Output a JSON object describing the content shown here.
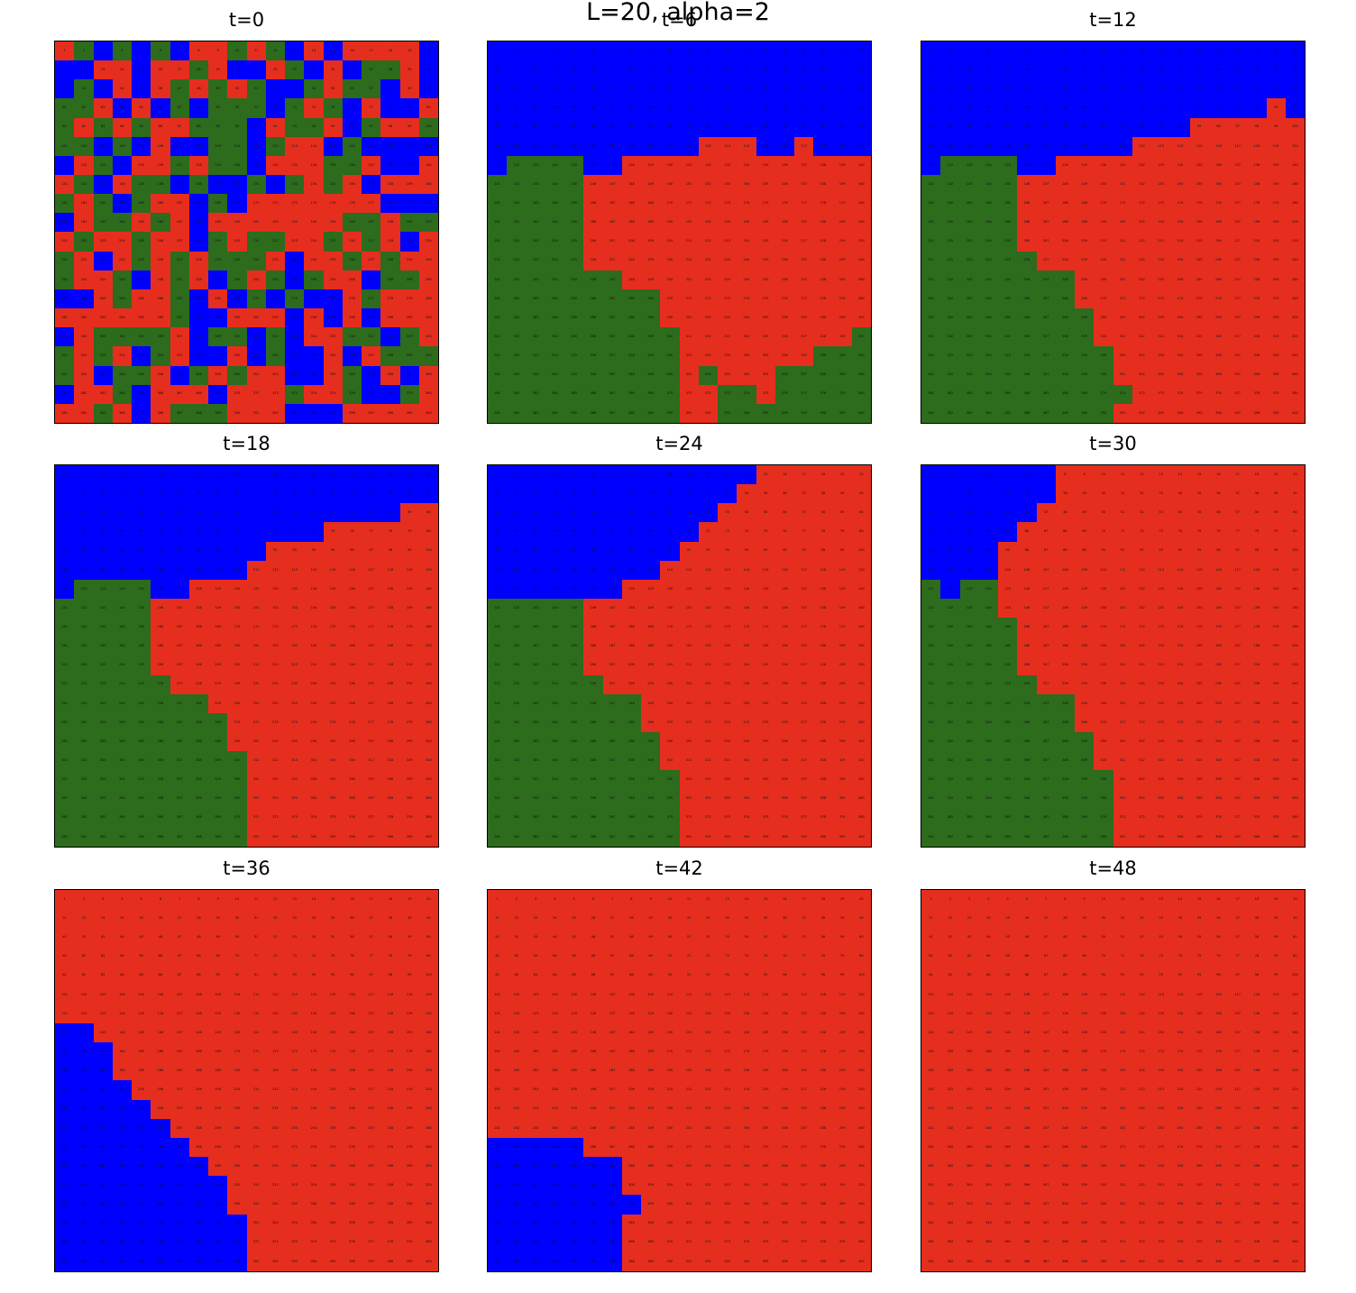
{
  "figure": {
    "title": "L=20, alpha=2"
  },
  "palette": {
    "0": "#ff0000",
    "1": "#2a7a1c",
    "2": "#0000ff",
    "red": "#e62e1e",
    "green": "#2d6b1d",
    "blue": "#0000ff"
  },
  "chart_data": {
    "type": "heatmap",
    "L": 20,
    "colors": [
      "R",
      "G",
      "B"
    ],
    "cell_labels": "1..400 row-major",
    "panels": [
      {
        "title": "t=0",
        "rows": [
          "RGBGBGBRRGRGBRBRRRRB",
          "BBRRBRRGRBBRGBRBGGRB",
          "BGBRBRGRGRGBBGRGGBRB",
          "GGRBRBGBGGGBGRGBRBBR",
          "GRGRGRRGGGBRGGRBGRRG",
          "GGBGBRBBGGBGRRBGBBBB",
          "BRGBRRGRGGBRRRGGRBBR",
          "RGBRGGBGBBGBGRGRBRRR",
          "GRGBGRRBGBRRRRRRRBBB",
          "BRGGRGRBRRRRRRRGGRGG",
          "RGRRGRRBGRGGRRGRGRBR",
          "GRBRGRGRGGGRBRRGRGRR",
          "GRRGBRGRBGRGBGRRBGGR",
          "BBRGRRGBRBGBGBBRGRRR",
          "RRRRRRGBBRRRBRBRBRRR",
          "BRGGGGRBGGBGBRRGGBGR",
          "GRGRBGRBBRBGBBRBRGGG",
          "GRBGGRBGRGRRBBRGBRBR",
          "BRRGBRRRBRRRGRRGBBGR",
          "RRGRBRGGGRRRBBBRRRRR"
        ]
      },
      {
        "title": "t=6",
        "rows": [
          "BBBBBBBBBBBBBBBBBBBB",
          "BBBBBBBBBBBBBBBBBBBB",
          "BBBBBBBBBBBBBBBBBBBB",
          "BBBBBBBBBBBBBBBBBBBB",
          "BBBBBBBBBBBBBBBBBBBB",
          "BBBBBBBBBBBRRRBBRBBB",
          "BGGGGBBRRRRRRRRRRRRR",
          "GGGGGRRRRRRRRRRRRRRR",
          "GGGGGRRRRRRRRRRRRRRR",
          "GGGGGRRRRRRRRRRRRRRR",
          "GGGGGRRRRRRRRRRRRRRR",
          "GGGGGRRRRRRRRRRRRRRR",
          "GGGGGGGRRRRRRRRRRRRR",
          "GGGGGGGGGRRRRRRRRRRR",
          "GGGGGGGGGRRRRRRRRRRR",
          "GGGGGGGGGGRRRRRRRRRG",
          "GGGGGGGGGGRRRRRRRGGG",
          "GGGGGGGGGGRGRRRGGGGG",
          "GGGGGGGGGGRRGGRGGGGG",
          "GGGGGGGGGGRRGGGGGGGG"
        ]
      },
      {
        "title": "t=12",
        "rows": [
          "BBBBBBBBBBBBBBBBBBBB",
          "BBBBBBBBBBBBBBBBBBBB",
          "BBBBBBBBBBBBBBBBBBBB",
          "BBBBBBBBBBBBBBBBBBRB",
          "BBBBBBBBBBBBBBRRRRRR",
          "BBBBBBBBBBBRRRRRRRRR",
          "BGGGGBBRRRRRRRRRRRRR",
          "GGGGGRRRRRRRRRRRRRRR",
          "GGGGGRRRRRRRRRRRRRRR",
          "GGGGGRRRRRRRRRRRRRRR",
          "GGGGGRRRRRRRRRRRRRRR",
          "GGGGGGRRRRRRRRRRRRRR",
          "GGGGGGGGRRRRRRRRRRRR",
          "GGGGGGGGRRRRRRRRRRRR",
          "GGGGGGGGGRRRRRRRRRRR",
          "GGGGGGGGGRRRRRRRRRRR",
          "GGGGGGGGGGRRRRRRRRRR",
          "GGGGGGGGGGRRRRRRRRRR",
          "GGGGGGGGGGGRRRRRRRRR",
          "GGGGGGGGGGRRRRRRRRRR"
        ]
      },
      {
        "title": "t=18",
        "rows": [
          "BBBBBBBBBBBBBBBBBBBB",
          "BBBBBBBBBBBBBBBBBBBB",
          "BBBBBBBBBBBBBBBBBBRR",
          "BBBBBBBBBBBBBBRRRRRR",
          "BBBBBBBBBBBRRRRRRRRR",
          "BBBBBBBBBBRRRRRRRRRR",
          "BGGGGBBRRRRRRRRRRRRR",
          "GGGGGRRRRRRRRRRRRRRR",
          "GGGGGRRRRRRRRRRRRRRR",
          "GGGGGRRRRRRRRRRRRRRR",
          "GGGGGRRRRRRRRRRRRRRR",
          "GGGGGGRRRRRRRRRRRRRR",
          "GGGGGGGGRRRRRRRRRRRR",
          "GGGGGGGGGRRRRRRRRRRR",
          "GGGGGGGGGRRRRRRRRRRR",
          "GGGGGGGGGGRRRRRRRRRR",
          "GGGGGGGGGGRRRRRRRRRR",
          "GGGGGGGGGGRRRRRRRRRR",
          "GGGGGGGGGGRRRRRRRRRR",
          "GGGGGGGGGGRRRRRRRRRR"
        ]
      },
      {
        "title": "t=24",
        "rows": [
          "BBBBBBBBBBBBBBRRRRRR",
          "BBBBBBBBBBBBBRRRRRRR",
          "BBBBBBBBBBBBRRRRRRRR",
          "BBBBBBBBBBBRRRRRRRRR",
          "BBBBBBBBBBRRRRRRRRRR",
          "BBBBBBBBBRRRRRRRRRRR",
          "BBBBBBBRRRRRRRRRRRRR",
          "GGGGGRRRRRRRRRRRRRRR",
          "GGGGGRRRRRRRRRRRRRRR",
          "GGGGGRRRRRRRRRRRRRRR",
          "GGGGGRRRRRRRRRRRRRRR",
          "GGGGGGRRRRRRRRRRRRRR",
          "GGGGGGGGRRRRRRRRRRRR",
          "GGGGGGGGRRRRRRRRRRRR",
          "GGGGGGGGGRRRRRRRRRRR",
          "GGGGGGGGGRRRRRRRRRRR",
          "GGGGGGGGGGRRRRRRRRRR",
          "GGGGGGGGGGRRRRRRRRRR",
          "GGGGGGGGGGRRRRRRRRRR",
          "GGGGGGGGGGRRRRRRRRRR"
        ]
      },
      {
        "title": "t=30",
        "rows": [
          "BBBBBBBRRRRRRRRRRRRR",
          "BBBBBBBRRRRRRRRRRRRR",
          "BBBBBBRRRRRRRRRRRRRR",
          "BBBBBRRRRRRRRRRRRRRR",
          "BBBBRRRRRRRRRRRRRRRR",
          "BBBBRRRRRRRRRRRRRRRR",
          "GBGGRRRRRRRRRRRRRRRR",
          "GGGGRRRRRRRRRRRRRRRR",
          "GGGGGRRRRRRRRRRRRRRR",
          "GGGGGRRRRRRRRRRRRRRR",
          "GGGGGRRRRRRRRRRRRRRR",
          "GGGGGGRRRRRRRRRRRRRR",
          "GGGGGGGGRRRRRRRRRRRR",
          "GGGGGGGGRRRRRRRRRRRR",
          "GGGGGGGGGRRRRRRRRRRR",
          "GGGGGGGGGRRRRRRRRRRR",
          "GGGGGGGGGGRRRRRRRRRR",
          "GGGGGGGGGGRRRRRRRRRR",
          "GGGGGGGGGGRRRRRRRRRR",
          "GGGGGGGGGGRRRRRRRRRR"
        ]
      },
      {
        "title": "t=36",
        "rows": [
          "RRRRRRRRRRRRRRRRRRRR",
          "RRRRRRRRRRRRRRRRRRRR",
          "RRRRRRRRRRRRRRRRRRRR",
          "RRRRRRRRRRRRRRRRRRRR",
          "RRRRRRRRRRRRRRRRRRRR",
          "RRRRRRRRRRRRRRRRRRRR",
          "RRRRRRRRRRRRRRRRRRRR",
          "BBRRRRRRRRRRRRRRRRRR",
          "BBBRRRRRRRRRRRRRRRRR",
          "BBBRRRRRRRRRRRRRRRRR",
          "BBBBRRRRRRRRRRRRRRRR",
          "BBBBBRRRRRRRRRRRRRRR",
          "BBBBBBRRRRRRRRRRRRRR",
          "BBBBBBBRRRRRRRRRRRRR",
          "BBBBBBBBRRRRRRRRRRRR",
          "BBBBBBBBBRRRRRRRRRRR",
          "BBBBBBBBBRRRRRRRRRRR",
          "BBBBBBBBBBRRRRRRRRRR",
          "BBBBBBBBBBRRRRRRRRRR",
          "BBBBBBBBBBRRRRRRRRRR"
        ]
      },
      {
        "title": "t=42",
        "rows": [
          "RRRRRRRRRRRRRRRRRRRR",
          "RRRRRRRRRRRRRRRRRRRR",
          "RRRRRRRRRRRRRRRRRRRR",
          "RRRRRRRRRRRRRRRRRRRR",
          "RRRRRRRRRRRRRRRRRRRR",
          "RRRRRRRRRRRRRRRRRRRR",
          "RRRRRRRRRRRRRRRRRRRR",
          "RRRRRRRRRRRRRRRRRRRR",
          "RRRRRRRRRRRRRRRRRRRR",
          "RRRRRRRRRRRRRRRRRRRR",
          "RRRRRRRRRRRRRRRRRRRR",
          "RRRRRRRRRRRRRRRRRRRR",
          "RRRRRRRRRRRRRRRRRRRR",
          "BBBBBRRRRRRRRRRRRRRR",
          "BBBBBBBRRRRRRRRRRRRR",
          "BBBBBBBRRRRRRRRRRRRR",
          "BBBBBBBBRRRRRRRRRRRR",
          "BBBBBBBRRRRRRRRRRRRR",
          "BBBBBBBRRRRRRRRRRRRR",
          "BBBBBBBRRRRRRRRRRRRR"
        ]
      },
      {
        "title": "t=48",
        "rows": [
          "RRRRRRRRRRRRRRRRRRRR",
          "RRRRRRRRRRRRRRRRRRRR",
          "RRRRRRRRRRRRRRRRRRRR",
          "RRRRRRRRRRRRRRRRRRRR",
          "RRRRRRRRRRRRRRRRRRRR",
          "RRRRRRRRRRRRRRRRRRRR",
          "RRRRRRRRRRRRRRRRRRRR",
          "RRRRRRRRRRRRRRRRRRRR",
          "RRRRRRRRRRRRRRRRRRRR",
          "RRRRRRRRRRRRRRRRRRRR",
          "RRRRRRRRRRRRRRRRRRRR",
          "RRRRRRRRRRRRRRRRRRRR",
          "RRRRRRRRRRRRRRRRRRRR",
          "RRRRRRRRRRRRRRRRRRRR",
          "RRRRRRRRRRRRRRRRRRRR",
          "RRRRRRRRRRRRRRRRRRRR",
          "RRRRRRRRRRRRRRRRRRRR",
          "RRRRRRRRRRRRRRRRRRRR",
          "RRRRRRRRRRRRRRRRRRRR",
          "RRRRRRRRRRRRRRRRRRRR"
        ]
      }
    ]
  }
}
